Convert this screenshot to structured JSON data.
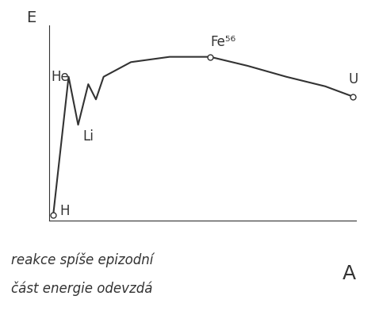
{
  "chart_data": {
    "type": "line",
    "x_label": "A",
    "y_label": "E",
    "x": [
      1.3,
      6.3,
      9.4,
      12.7,
      15.2,
      17.7,
      26.6,
      39.2,
      52.4,
      64.6,
      77.2,
      89.9,
      99.0
    ],
    "values": [
      3.0,
      73.6,
      49.0,
      69.8,
      62.0,
      73.6,
      81.1,
      83.8,
      83.8,
      79.2,
      73.6,
      68.7,
      63.4
    ],
    "xlim": [
      0,
      100
    ],
    "ylim": [
      0,
      100
    ],
    "tick_labels": false,
    "grid": false,
    "color": "#333333",
    "annotations": [
      {
        "text": "H",
        "x": 1.3,
        "y": 3.0,
        "marker": "o"
      },
      {
        "text": "He",
        "x": 6.3,
        "y": 73.6
      },
      {
        "text": "Li",
        "x": 9.4,
        "y": 49.0
      },
      {
        "text": "Fe⁵⁶",
        "x": 52.4,
        "y": 83.8,
        "marker": "o"
      },
      {
        "text": "U",
        "x": 99.0,
        "y": 63.4,
        "marker": "o"
      }
    ],
    "notes": [
      "reakce spíše epizodní",
      "část energie odevzdá"
    ]
  }
}
